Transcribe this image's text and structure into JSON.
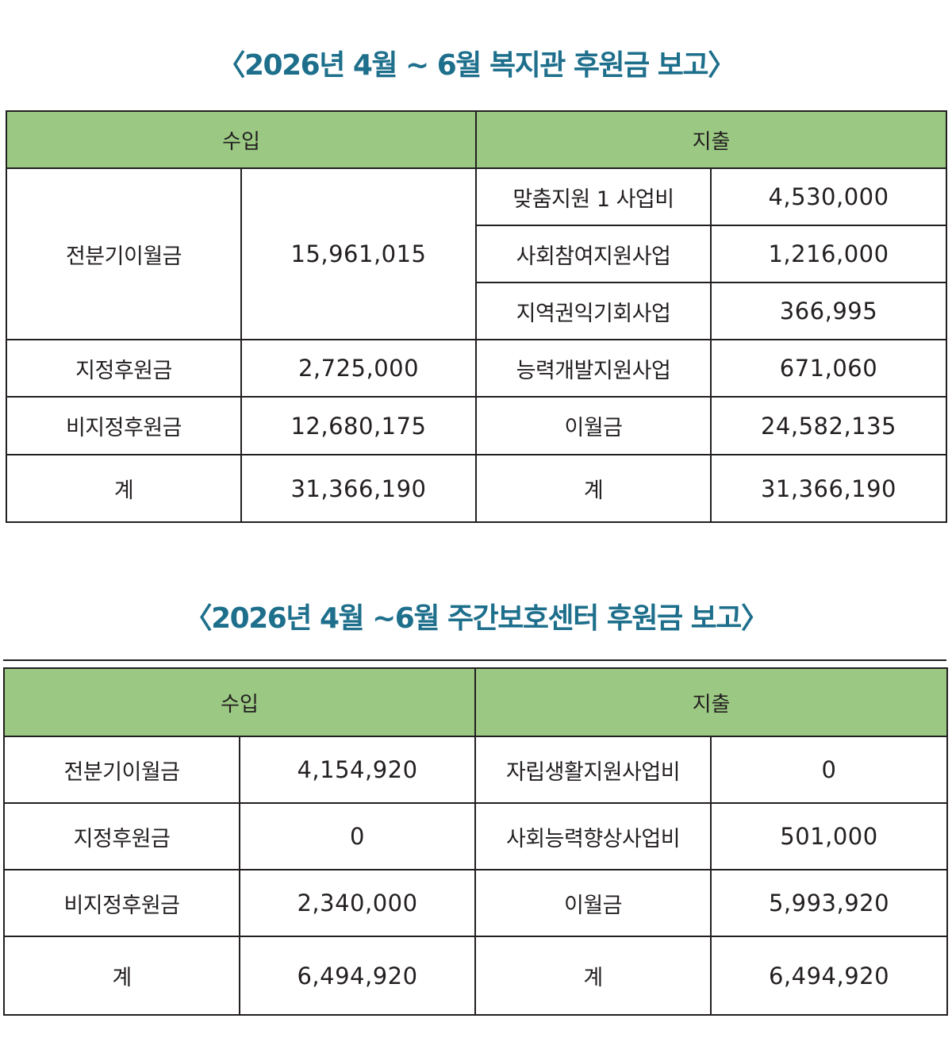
{
  "reports": [
    {
      "title": "〈2026년 4월 ~ 6월 복지관 후원금 보고〉",
      "header": {
        "income": "수입",
        "expense": "지출"
      },
      "rows": {
        "r1": {
          "income_label": "전분기이월금",
          "income_value": "15,961,015",
          "expense_label": "맞춤지원 1 사업비",
          "expense_value": "4,530,000"
        },
        "r2": {
          "expense_label": "사회참여지원사업",
          "expense_value": "1,216,000"
        },
        "r3": {
          "expense_label": "지역권익기회사업",
          "expense_value": "366,995"
        },
        "r4": {
          "income_label": "지정후원금",
          "income_value": "2,725,000",
          "expense_label": "능력개발지원사업",
          "expense_value": "671,060"
        },
        "r5": {
          "income_label": "비지정후원금",
          "income_value": "12,680,175",
          "expense_label": "이월금",
          "expense_value": "24,582,135"
        },
        "total": {
          "income_label": "계",
          "income_value": "31,366,190",
          "expense_label": "계",
          "expense_value": "31,366,190"
        }
      }
    },
    {
      "title": "〈2026년 4월 ~6월 주간보호센터 후원금 보고〉",
      "header": {
        "income": "수입",
        "expense": "지출"
      },
      "rows": {
        "r1": {
          "income_label": "전분기이월금",
          "income_value": "4,154,920",
          "expense_label": "자립생활지원사업비",
          "expense_value": "0"
        },
        "r2": {
          "income_label": "지정후원금",
          "income_value": "0",
          "expense_label": "사회능력향상사업비",
          "expense_value": "501,000"
        },
        "r3": {
          "income_label": "비지정후원금",
          "income_value": "2,340,000",
          "expense_label": "이월금",
          "expense_value": "5,993,920"
        },
        "total": {
          "income_label": "계",
          "income_value": "6,494,920",
          "expense_label": "계",
          "expense_value": "6,494,920"
        }
      }
    }
  ],
  "colors": {
    "title": "#1e6f8c",
    "header_fill": "#9bc983",
    "border": "#231f20"
  }
}
